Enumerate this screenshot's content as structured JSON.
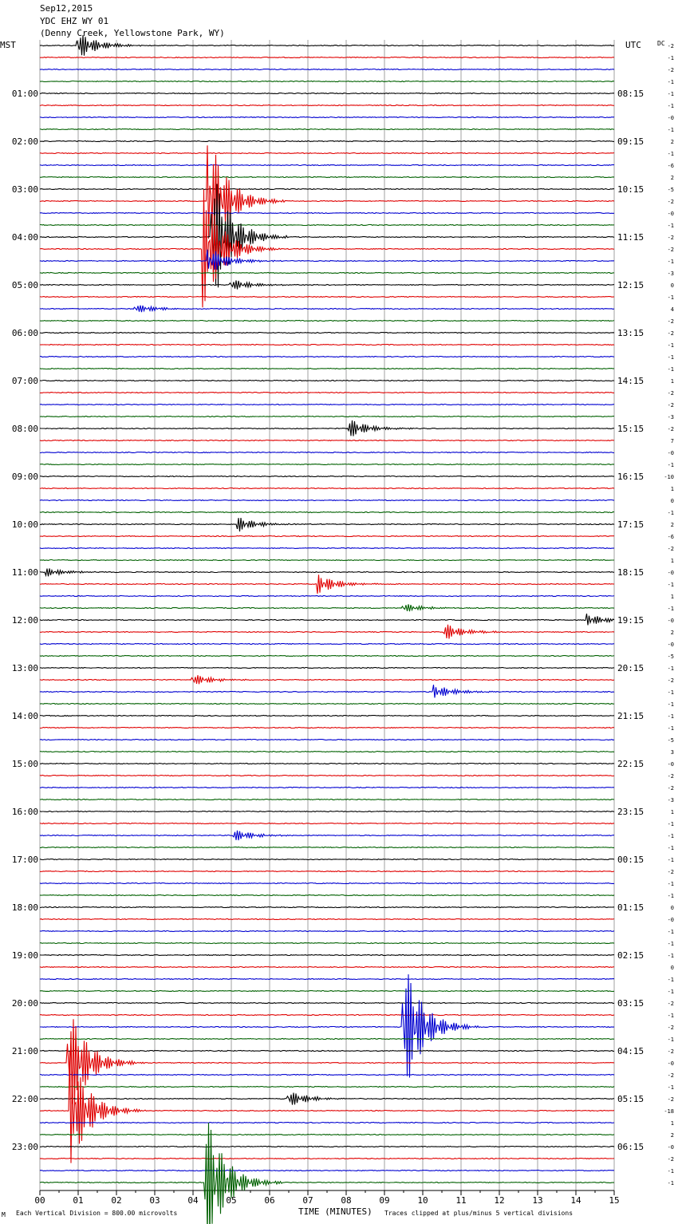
{
  "header": {
    "date": "Sep12,2015",
    "station": "YDC EHZ WY 01",
    "location": "(Denny Creek, Yellowstone Park, WY)"
  },
  "left_axis_title": "MST",
  "right_axis_title": "UTC",
  "dc_label": "DC",
  "footer": {
    "scale_mark": "M",
    "division_note": "Each Vertical Division =  800.00 microvolts",
    "x_axis_title": "TIME (MINUTES)",
    "clip_note": "Traces clipped at plus/minus 5 vertical divisions"
  },
  "colors": {
    "trace_cycle": [
      "#000000",
      "#e00000",
      "#0000d0",
      "#006000"
    ],
    "grid": "#a0a0a0"
  },
  "chart_data": {
    "type": "line",
    "subtype": "helicorder",
    "xlabel": "TIME (MINUTES)",
    "xlim": [
      0,
      15
    ],
    "x_ticks": [
      "00",
      "01",
      "02",
      "03",
      "04",
      "05",
      "06",
      "07",
      "08",
      "09",
      "10",
      "11",
      "12",
      "13",
      "14",
      "15"
    ],
    "row_minutes": 15,
    "rows": 96,
    "hour_labels_mst": [
      "01:00",
      "02:00",
      "03:00",
      "04:00",
      "05:00",
      "06:00",
      "07:00",
      "08:00",
      "09:00",
      "10:00",
      "11:00",
      "12:00",
      "13:00",
      "14:00",
      "15:00",
      "16:00",
      "17:00",
      "18:00",
      "19:00",
      "20:00",
      "21:00",
      "22:00",
      "23:00"
    ],
    "hour_labels_utc": [
      "08:15",
      "09:15",
      "10:15",
      "11:15",
      "12:15",
      "13:15",
      "14:15",
      "15:15",
      "16:15",
      "17:15",
      "18:15",
      "19:15",
      "20:15",
      "21:15",
      "22:15",
      "23:15",
      "00:15",
      "01:15",
      "02:15",
      "03:15",
      "04:15",
      "05:15",
      "06:15"
    ],
    "dc_offsets": [
      "-2",
      "-1",
      "-2",
      "-1",
      "-1",
      "-1",
      "-0",
      "-1",
      "2",
      "-1",
      "-6",
      "2",
      "-5",
      "-2",
      "-0",
      "-1",
      "-2",
      "-2",
      "-1",
      "-3",
      "0",
      "-1",
      "4",
      "-2",
      "-2",
      "-1",
      "-1",
      "-1",
      "1",
      "-2",
      "-2",
      "-3",
      "-2",
      "7",
      "-0",
      "-1",
      "-10",
      "1",
      "0",
      "-1",
      "2",
      "-6",
      "-2",
      "1",
      "-0",
      "-1",
      "1",
      "-1",
      "-0",
      "2",
      "-0",
      "-5",
      "-1",
      "-2",
      "-1",
      "-1",
      "-1",
      "-1",
      "-5",
      "3",
      "-0",
      "-2",
      "-2",
      "-3",
      "1",
      "-1",
      "-1",
      "-1",
      "-1",
      "-2",
      "-1",
      "-1",
      "0",
      "-0",
      "-1",
      "-1",
      "-1",
      "0",
      "-1",
      "-1",
      "-2",
      "-1",
      "-2",
      "-1",
      "-2",
      "-0",
      "-2",
      "-1",
      "-2",
      "-18",
      "1",
      "2",
      "-0",
      "-2",
      "-1",
      "-1"
    ],
    "events": [
      {
        "row": 0,
        "minute": 1.0,
        "amp": 1.2
      },
      {
        "row": 13,
        "minute": 4.4,
        "amp": 6
      },
      {
        "row": 16,
        "minute": 4.5,
        "amp": 6
      },
      {
        "row": 17,
        "minute": 4.3,
        "amp": 5
      },
      {
        "row": 18,
        "minute": 4.4,
        "amp": 1.2
      },
      {
        "row": 20,
        "minute": 5.0,
        "amp": 0.5
      },
      {
        "row": 22,
        "minute": 2.5,
        "amp": 0.4
      },
      {
        "row": 32,
        "minute": 8.1,
        "amp": 0.8
      },
      {
        "row": 40,
        "minute": 5.2,
        "amp": 0.6
      },
      {
        "row": 44,
        "minute": 0.2,
        "amp": 0.35
      },
      {
        "row": 45,
        "minute": 7.3,
        "amp": 0.8
      },
      {
        "row": 47,
        "minute": 9.5,
        "amp": 0.4
      },
      {
        "row": 48,
        "minute": 14.3,
        "amp": 0.5
      },
      {
        "row": 49,
        "minute": 10.6,
        "amp": 0.7
      },
      {
        "row": 53,
        "minute": 4.0,
        "amp": 0.5
      },
      {
        "row": 54,
        "minute": 10.3,
        "amp": 0.6
      },
      {
        "row": 66,
        "minute": 5.1,
        "amp": 0.5
      },
      {
        "row": 82,
        "minute": 9.5,
        "amp": 6
      },
      {
        "row": 85,
        "minute": 0.75,
        "amp": 5
      },
      {
        "row": 88,
        "minute": 6.5,
        "amp": 0.7
      },
      {
        "row": 89,
        "minute": 0.8,
        "amp": 5
      },
      {
        "row": 95,
        "minute": 4.35,
        "amp": 6
      }
    ]
  }
}
